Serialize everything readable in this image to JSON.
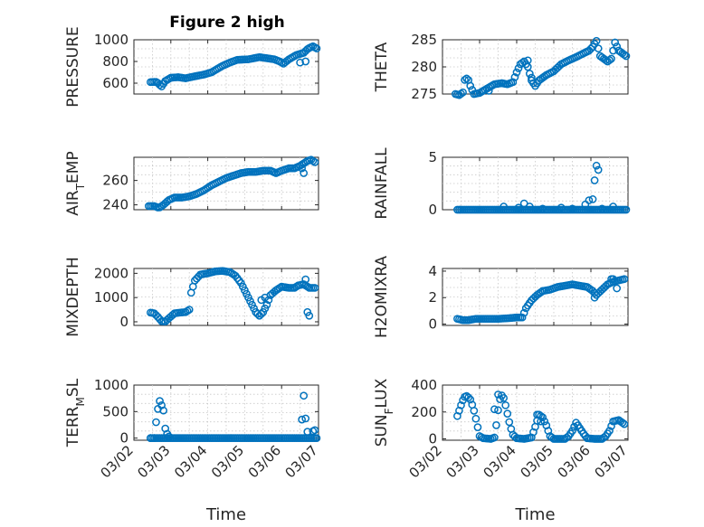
{
  "figure": {
    "title": "Figure 2 high"
  },
  "style": {
    "marker_color": "#0072bd",
    "axis_color": "#262626",
    "grid_color": "#c8c8c8"
  },
  "chart_data": [
    {
      "type": "scatter",
      "id": "pressure",
      "title": "Figure 2 high",
      "ylabel": "PRESSURE",
      "ylabel_sub": "",
      "ylim": [
        500,
        1000
      ],
      "yticks": [
        600,
        800,
        1000
      ],
      "xlim": [
        0,
        5
      ],
      "xticks": [
        0,
        1,
        2,
        3,
        4,
        5
      ],
      "xtick_labels": [
        "03/02",
        "03/03",
        "03/04",
        "03/05",
        "03/06",
        "03/07"
      ],
      "show_xticklabels": false,
      "xlabel": "",
      "grid": true,
      "knots": [
        [
          0.45,
          610
        ],
        [
          0.62,
          612
        ],
        [
          0.68,
          590
        ],
        [
          0.75,
          570
        ],
        [
          0.85,
          620
        ],
        [
          1.0,
          650
        ],
        [
          1.2,
          655
        ],
        [
          1.4,
          645
        ],
        [
          1.6,
          660
        ],
        [
          1.9,
          680
        ],
        [
          2.1,
          700
        ],
        [
          2.4,
          760
        ],
        [
          2.6,
          790
        ],
        [
          2.8,
          815
        ],
        [
          3.1,
          820
        ],
        [
          3.4,
          840
        ],
        [
          3.6,
          830
        ],
        [
          3.8,
          820
        ],
        [
          3.95,
          800
        ],
        [
          4.05,
          780
        ],
        [
          4.2,
          820
        ],
        [
          4.4,
          860
        ],
        [
          4.6,
          880
        ],
        [
          4.72,
          920
        ],
        [
          4.85,
          940
        ],
        [
          4.95,
          920
        ]
      ],
      "extras": [
        [
          4.65,
          800
        ],
        [
          4.5,
          790
        ]
      ],
      "step": 0.05
    },
    {
      "type": "scatter",
      "id": "theta",
      "ylabel": "THETA",
      "ylabel_sub": "",
      "ylim": [
        275,
        285
      ],
      "yticks": [
        275,
        280,
        285
      ],
      "xlim": [
        0,
        5
      ],
      "xticks": [
        0,
        1,
        2,
        3,
        4,
        5
      ],
      "xtick_labels": [
        "03/02",
        "03/03",
        "03/04",
        "03/05",
        "03/06",
        "03/07"
      ],
      "show_xticklabels": false,
      "xlabel": "",
      "grid": true,
      "knots": [
        [
          0.35,
          275
        ],
        [
          0.45,
          274.8
        ],
        [
          0.55,
          275.3
        ],
        [
          0.6,
          277.6
        ],
        [
          0.68,
          278
        ],
        [
          0.75,
          276.5
        ],
        [
          0.85,
          275
        ],
        [
          1.0,
          275.2
        ],
        [
          1.2,
          276
        ],
        [
          1.4,
          276.8
        ],
        [
          1.6,
          277
        ],
        [
          1.75,
          276.8
        ],
        [
          1.9,
          277.2
        ],
        [
          2.0,
          279
        ],
        [
          2.1,
          280.5
        ],
        [
          2.2,
          281
        ],
        [
          2.3,
          280
        ],
        [
          2.4,
          277.5
        ],
        [
          2.5,
          276.5
        ],
        [
          2.6,
          277.5
        ],
        [
          2.8,
          278.5
        ],
        [
          3.0,
          279.2
        ],
        [
          3.2,
          280.5
        ],
        [
          3.4,
          281.2
        ],
        [
          3.6,
          281.8
        ],
        [
          3.8,
          282.5
        ],
        [
          3.95,
          283
        ],
        [
          4.05,
          283.7
        ],
        [
          4.15,
          284.8
        ],
        [
          4.25,
          282
        ],
        [
          4.35,
          281.5
        ],
        [
          4.45,
          281
        ],
        [
          4.55,
          281.5
        ],
        [
          4.65,
          284.5
        ],
        [
          4.75,
          283
        ],
        [
          4.85,
          282.5
        ],
        [
          4.95,
          282
        ]
      ],
      "extras": [
        [
          1.25,
          275.6
        ],
        [
          2.3,
          281.2
        ],
        [
          2.4,
          278
        ]
      ],
      "step": 0.05
    },
    {
      "type": "scatter",
      "id": "air_temp",
      "ylabel": "AIR",
      "ylabel_sub": "T",
      "ylabel_post": "EMP",
      "ylim": [
        236,
        279
      ],
      "yticks": [
        240,
        260
      ],
      "xlim": [
        0,
        5
      ],
      "xticks": [
        0,
        1,
        2,
        3,
        4,
        5
      ],
      "xtick_labels": [
        "03/02",
        "03/03",
        "03/04",
        "03/05",
        "03/06",
        "03/07"
      ],
      "show_xticklabels": false,
      "xlabel": "",
      "grid": true,
      "knots": [
        [
          0.4,
          239
        ],
        [
          0.55,
          239
        ],
        [
          0.68,
          237.5
        ],
        [
          0.8,
          240
        ],
        [
          0.95,
          244
        ],
        [
          1.1,
          246
        ],
        [
          1.3,
          246
        ],
        [
          1.5,
          247
        ],
        [
          1.7,
          249
        ],
        [
          1.9,
          252
        ],
        [
          2.1,
          256
        ],
        [
          2.3,
          259
        ],
        [
          2.5,
          262
        ],
        [
          2.7,
          264
        ],
        [
          2.9,
          266
        ],
        [
          3.1,
          267
        ],
        [
          3.3,
          267
        ],
        [
          3.5,
          268
        ],
        [
          3.7,
          268
        ],
        [
          3.85,
          266
        ],
        [
          4.0,
          268
        ],
        [
          4.2,
          270
        ],
        [
          4.35,
          270
        ],
        [
          4.5,
          272
        ],
        [
          4.7,
          276
        ],
        [
          4.8,
          277
        ],
        [
          4.9,
          275
        ]
      ],
      "extras": [
        [
          4.6,
          266
        ],
        [
          4.55,
          270
        ]
      ],
      "step": 0.05
    },
    {
      "type": "scatter",
      "id": "rainfall",
      "ylabel": "RAINFALL",
      "ylabel_sub": "",
      "ylim": [
        0,
        5
      ],
      "yticks": [
        0,
        5
      ],
      "xlim": [
        0,
        5
      ],
      "xticks": [
        0,
        1,
        2,
        3,
        4,
        5
      ],
      "xtick_labels": [
        "03/02",
        "03/03",
        "03/04",
        "03/05",
        "03/06",
        "03/07"
      ],
      "show_xticklabels": false,
      "xlabel": "",
      "grid": true,
      "knots": [
        [
          0.4,
          0
        ],
        [
          4.95,
          0
        ]
      ],
      "extras": [
        [
          1.65,
          0.3
        ],
        [
          2.05,
          0.2
        ],
        [
          2.2,
          0.6
        ],
        [
          2.35,
          0.3
        ],
        [
          2.7,
          0.1
        ],
        [
          3.2,
          0.2
        ],
        [
          3.5,
          0.1
        ],
        [
          3.85,
          0.5
        ],
        [
          3.95,
          0.9
        ],
        [
          4.05,
          1.0
        ],
        [
          4.1,
          2.8
        ],
        [
          4.15,
          4.2
        ],
        [
          4.2,
          3.8
        ],
        [
          4.3,
          0.1
        ],
        [
          4.6,
          0.3
        ]
      ],
      "step": 0.05
    },
    {
      "type": "scatter",
      "id": "mixdepth",
      "ylabel": "MIXDEPTH",
      "ylabel_sub": "",
      "ylim": [
        -150,
        2200
      ],
      "yticks": [
        0,
        1000,
        2000
      ],
      "xlim": [
        0,
        5
      ],
      "xticks": [
        0,
        1,
        2,
        3,
        4,
        5
      ],
      "xtick_labels": [
        "03/02",
        "03/03",
        "03/04",
        "03/05",
        "03/06",
        "03/07"
      ],
      "show_xticklabels": false,
      "xlabel": "",
      "grid": true,
      "knots": [
        [
          0.45,
          380
        ],
        [
          0.55,
          350
        ],
        [
          0.65,
          200
        ],
        [
          0.75,
          20
        ],
        [
          0.85,
          10
        ],
        [
          0.95,
          150
        ],
        [
          1.1,
          350
        ],
        [
          1.25,
          380
        ],
        [
          1.4,
          400
        ],
        [
          1.5,
          500
        ],
        [
          1.55,
          1200
        ],
        [
          1.65,
          1700
        ],
        [
          1.8,
          1950
        ],
        [
          2.0,
          2000
        ],
        [
          2.2,
          2080
        ],
        [
          2.4,
          2100
        ],
        [
          2.6,
          2050
        ],
        [
          2.75,
          1900
        ],
        [
          2.9,
          1600
        ],
        [
          3.0,
          1300
        ],
        [
          3.1,
          1000
        ],
        [
          3.2,
          700
        ],
        [
          3.3,
          400
        ],
        [
          3.4,
          250
        ],
        [
          3.5,
          400
        ],
        [
          3.6,
          700
        ],
        [
          3.7,
          1100
        ],
        [
          3.85,
          1300
        ],
        [
          4.0,
          1450
        ],
        [
          4.2,
          1400
        ],
        [
          4.35,
          1400
        ],
        [
          4.45,
          1500
        ],
        [
          4.6,
          1550
        ],
        [
          4.75,
          1400
        ],
        [
          4.9,
          1400
        ]
      ],
      "extras": [
        [
          3.45,
          900
        ],
        [
          3.55,
          1000
        ],
        [
          4.65,
          1750
        ],
        [
          4.7,
          400
        ],
        [
          4.75,
          250
        ]
      ],
      "step": 0.05
    },
    {
      "type": "scatter",
      "id": "h2omixra",
      "ylabel": "H2OMIXRA",
      "ylabel_sub": "",
      "ylim": [
        -0.1,
        4.2
      ],
      "yticks": [
        0,
        2,
        4
      ],
      "xlim": [
        0,
        5
      ],
      "xticks": [
        0,
        1,
        2,
        3,
        4,
        5
      ],
      "xtick_labels": [
        "03/02",
        "03/03",
        "03/04",
        "03/05",
        "03/06",
        "03/07"
      ],
      "show_xticklabels": false,
      "xlabel": "",
      "grid": true,
      "knots": [
        [
          0.4,
          0.4
        ],
        [
          0.55,
          0.3
        ],
        [
          0.7,
          0.3
        ],
        [
          0.9,
          0.4
        ],
        [
          1.1,
          0.4
        ],
        [
          1.5,
          0.4
        ],
        [
          1.8,
          0.45
        ],
        [
          2.0,
          0.5
        ],
        [
          2.15,
          0.5
        ],
        [
          2.25,
          1.2
        ],
        [
          2.4,
          1.8
        ],
        [
          2.55,
          2.2
        ],
        [
          2.7,
          2.5
        ],
        [
          2.9,
          2.6
        ],
        [
          3.1,
          2.8
        ],
        [
          3.3,
          2.9
        ],
        [
          3.5,
          3.0
        ],
        [
          3.7,
          2.9
        ],
        [
          3.9,
          2.8
        ],
        [
          4.05,
          2.5
        ],
        [
          4.15,
          2.2
        ],
        [
          4.3,
          2.6
        ],
        [
          4.45,
          3.0
        ],
        [
          4.6,
          3.2
        ],
        [
          4.75,
          3.3
        ],
        [
          4.9,
          3.4
        ]
      ],
      "extras": [
        [
          4.1,
          2.0
        ],
        [
          4.55,
          3.4
        ],
        [
          4.6,
          3.4
        ],
        [
          4.7,
          2.7
        ]
      ],
      "step": 0.05
    },
    {
      "type": "scatter",
      "id": "terr_msl",
      "ylabel": "TERR",
      "ylabel_sub": "M",
      "ylabel_post": "SL",
      "ylim": [
        -40,
        1000
      ],
      "yticks": [
        0,
        500,
        1000
      ],
      "xlim": [
        0,
        5
      ],
      "xticks": [
        0,
        1,
        2,
        3,
        4,
        5
      ],
      "xtick_labels": [
        "03/02",
        "03/03",
        "03/04",
        "03/05",
        "03/06",
        "03/07"
      ],
      "show_xticklabels": true,
      "xlabel": "Time",
      "grid": true,
      "knots": [
        [
          0.45,
          0
        ],
        [
          4.95,
          0
        ]
      ],
      "extras": [
        [
          0.45,
          0
        ],
        [
          0.55,
          0
        ],
        [
          0.6,
          300
        ],
        [
          0.65,
          550
        ],
        [
          0.7,
          700
        ],
        [
          0.75,
          620
        ],
        [
          0.8,
          520
        ],
        [
          0.85,
          180
        ],
        [
          0.9,
          80
        ],
        [
          0.95,
          30
        ],
        [
          4.55,
          350
        ],
        [
          4.6,
          800
        ],
        [
          4.65,
          370
        ],
        [
          4.7,
          120
        ],
        [
          4.85,
          130
        ],
        [
          4.9,
          150
        ]
      ],
      "step": 0.05
    },
    {
      "type": "scatter",
      "id": "sun_flux",
      "ylabel": "SUN",
      "ylabel_sub": "F",
      "ylabel_post": "LUX",
      "ylim": [
        -10,
        400
      ],
      "yticks": [
        0,
        200,
        400
      ],
      "xlim": [
        0,
        5
      ],
      "xticks": [
        0,
        1,
        2,
        3,
        4,
        5
      ],
      "xtick_labels": [
        "03/02",
        "03/03",
        "03/04",
        "03/05",
        "03/06",
        "03/07"
      ],
      "show_xticklabels": true,
      "xlabel": "Time",
      "grid": true,
      "knots": [
        [
          0.4,
          170
        ],
        [
          0.5,
          250
        ],
        [
          0.58,
          310
        ],
        [
          0.66,
          320
        ],
        [
          0.76,
          290
        ],
        [
          0.86,
          200
        ],
        [
          0.94,
          100
        ],
        [
          1.0,
          20
        ],
        [
          1.1,
          5
        ],
        [
          1.3,
          0
        ],
        [
          1.4,
          10
        ],
        [
          1.46,
          120
        ],
        [
          1.52,
          260
        ],
        [
          1.58,
          330
        ],
        [
          1.66,
          300
        ],
        [
          1.74,
          200
        ],
        [
          1.82,
          100
        ],
        [
          1.9,
          30
        ],
        [
          2.0,
          5
        ],
        [
          2.2,
          0
        ],
        [
          2.4,
          10
        ],
        [
          2.5,
          90
        ],
        [
          2.6,
          180
        ],
        [
          2.7,
          160
        ],
        [
          2.8,
          100
        ],
        [
          2.9,
          20
        ],
        [
          3.0,
          0
        ],
        [
          3.3,
          0
        ],
        [
          3.4,
          20
        ],
        [
          3.5,
          60
        ],
        [
          3.6,
          120
        ],
        [
          3.7,
          80
        ],
        [
          3.8,
          40
        ],
        [
          3.9,
          5
        ],
        [
          4.1,
          0
        ],
        [
          4.3,
          0
        ],
        [
          4.4,
          20
        ],
        [
          4.5,
          60
        ],
        [
          4.6,
          130
        ],
        [
          4.75,
          140
        ],
        [
          4.9,
          110
        ]
      ],
      "extras": [
        [
          1.4,
          220
        ],
        [
          1.5,
          330
        ],
        [
          2.55,
          180
        ],
        [
          2.65,
          130
        ]
      ],
      "step": 0.05
    }
  ]
}
